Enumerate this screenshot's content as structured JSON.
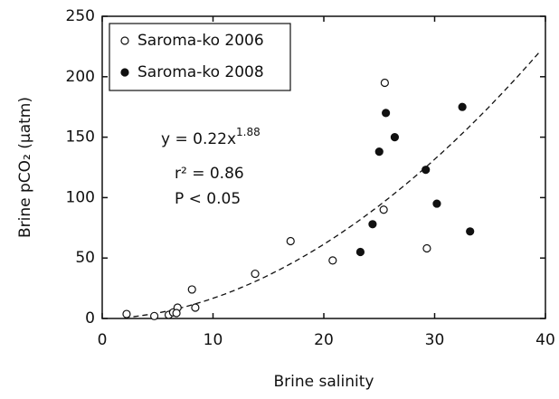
{
  "chart_data": {
    "type": "scatter",
    "x_label": "Brine salinity",
    "y_label": "Brine pCO₂ (µatm)",
    "xlim": [
      0,
      40
    ],
    "xticks": [
      0,
      10,
      20,
      30,
      40
    ],
    "ylim": [
      0,
      250
    ],
    "yticks": [
      0,
      50,
      100,
      150,
      200,
      250
    ],
    "legend": "upper left",
    "series": [
      {
        "name": "Saroma-ko 2006",
        "color": "#111111",
        "marker": "open",
        "x": [
          2.2,
          4.7,
          6.0,
          6.4,
          6.8,
          6.7,
          8.1,
          8.4,
          13.8,
          17.0,
          20.8,
          25.5,
          25.4,
          29.3
        ],
        "values": [
          3.7,
          2,
          3,
          5,
          9,
          4.5,
          24,
          9,
          37,
          64,
          48,
          195,
          90,
          58
        ]
      },
      {
        "name": "Saroma-ko 2008",
        "color": "#111111",
        "marker": "filled",
        "x": [
          23.3,
          24.4,
          25.0,
          25.6,
          26.4,
          29.2,
          30.2,
          33.2,
          32.5
        ],
        "values": [
          55,
          78,
          138,
          170,
          150,
          123,
          95,
          72,
          175
        ]
      }
    ],
    "fit": {
      "label": "y = ",
      "coefficient": 0.22,
      "variable": "x",
      "exponent": 1.88,
      "x_range": [
        2,
        39.5
      ]
    },
    "annotations": [
      "r² = 0.86",
      "P < 0.05"
    ]
  }
}
